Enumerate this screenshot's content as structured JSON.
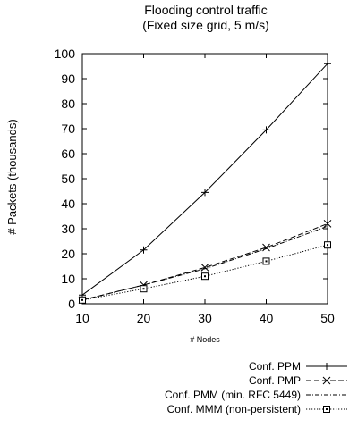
{
  "chart_data": {
    "type": "line",
    "title": "Flooding control traffic",
    "subtitle": "(Fixed size grid, 5 m/s)",
    "xlabel": "# Nodes",
    "ylabel": "# Packets (thousands)",
    "x": [
      10,
      20,
      30,
      40,
      50
    ],
    "xlim": [
      10,
      50
    ],
    "ylim": [
      0,
      100
    ],
    "x_ticks": [
      "10",
      "20",
      "30",
      "40",
      "50"
    ],
    "y_ticks": [
      "0",
      "10",
      "20",
      "30",
      "40",
      "50",
      "60",
      "70",
      "80",
      "90",
      "100"
    ],
    "grid": false,
    "legend_position": "bottom-right",
    "series": [
      {
        "name": "Conf. PPM",
        "marker": "plus",
        "dash": "solid",
        "values": [
          3.5,
          21.5,
          44.5,
          69.5,
          96
        ]
      },
      {
        "name": "Conf. PMP",
        "marker": "cross",
        "dash": "dashed",
        "values": [
          1.5,
          7.5,
          14.5,
          22.5,
          32
        ]
      },
      {
        "name": "Conf. PMM (min. RFC 5449)",
        "marker": "none",
        "dash": "dash-dot",
        "values": [
          1.5,
          7.5,
          14,
          22,
          31
        ]
      },
      {
        "name": "Conf. MMM (non-persistent)",
        "marker": "square",
        "dash": "dotted",
        "values": [
          1.5,
          6,
          11,
          17,
          23.5
        ]
      }
    ]
  }
}
